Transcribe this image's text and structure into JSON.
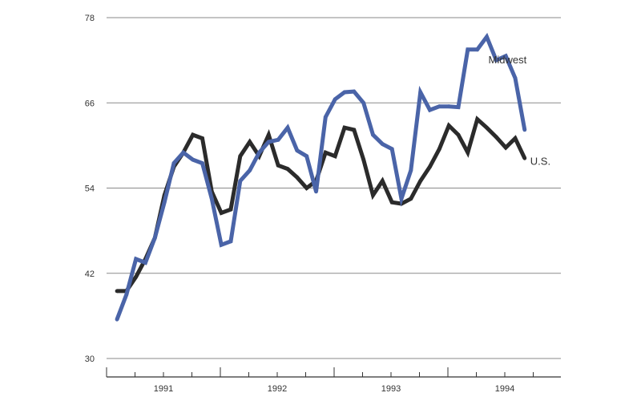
{
  "chart_data": {
    "type": "line",
    "title": "",
    "xlabel": "",
    "ylabel": "",
    "ylim": [
      30,
      78
    ],
    "yticks": [
      30,
      42,
      54,
      66,
      78
    ],
    "grid": true,
    "x_start_year": 1990.75,
    "x_step": "month",
    "x_tick_labels": [
      "1991",
      "1992",
      "1993",
      "1994"
    ],
    "series": [
      {
        "name": "U.S.",
        "color": "#2b2b2b",
        "values": [
          39.5,
          39.5,
          41.5,
          44,
          47,
          53,
          57,
          59,
          61.5,
          61,
          53.5,
          50.5,
          51,
          58.5,
          60.5,
          58.5,
          61.5,
          57.2,
          56.7,
          55.5,
          54,
          55,
          59,
          58.5,
          62.5,
          62.2,
          58,
          53,
          55,
          52,
          51.8,
          52.5,
          55,
          57,
          59.5,
          62.8,
          61.5,
          59,
          63.7,
          62.5,
          61.2,
          59.7,
          61,
          58.2
        ]
      },
      {
        "name": "Midwest",
        "color": "#4a64a8",
        "values": [
          35.5,
          39,
          44,
          43.5,
          47,
          52,
          57.5,
          59,
          58,
          57.5,
          52.5,
          46,
          46.5,
          55,
          56.5,
          59,
          60.5,
          60.8,
          62.5,
          59.3,
          58.5,
          53.5,
          64,
          66.5,
          67.5,
          67.6,
          66,
          61.5,
          60.2,
          59.5,
          52.5,
          56.5,
          67.5,
          65,
          65.5,
          65.5,
          65.4,
          73.5,
          73.5,
          75.3,
          72,
          72.6,
          69.5,
          62.2
        ]
      }
    ]
  }
}
